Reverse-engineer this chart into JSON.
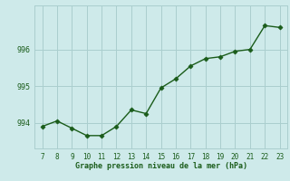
{
  "x": [
    7,
    8,
    9,
    10,
    11,
    12,
    13,
    14,
    15,
    16,
    17,
    18,
    19,
    20,
    21,
    22,
    23
  ],
  "y": [
    993.9,
    994.05,
    993.85,
    993.65,
    993.65,
    993.9,
    994.35,
    994.25,
    994.95,
    995.2,
    995.55,
    995.75,
    995.8,
    995.95,
    996.0,
    996.65,
    996.6
  ],
  "background_color": "#ceeaea",
  "grid_color": "#aacece",
  "line_color": "#1a5c1a",
  "marker_color": "#1a5c1a",
  "xlabel": "Graphe pression niveau de la mer (hPa)",
  "xlabel_color": "#1a5c1a",
  "tick_color": "#1a5c1a",
  "yticks": [
    994,
    995,
    996
  ],
  "ylim": [
    993.3,
    997.2
  ],
  "xlim": [
    6.5,
    23.5
  ],
  "xticks": [
    7,
    8,
    9,
    10,
    11,
    12,
    13,
    14,
    15,
    16,
    17,
    18,
    19,
    20,
    21,
    22,
    23
  ]
}
